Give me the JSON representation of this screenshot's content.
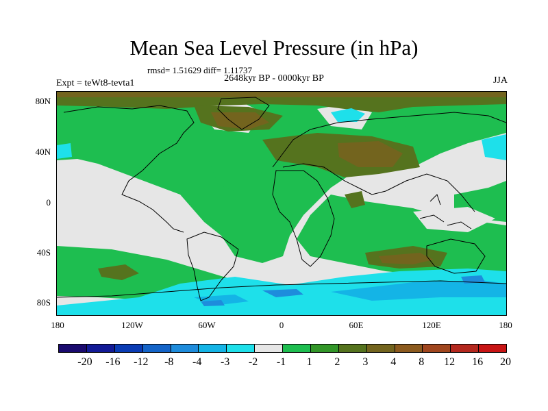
{
  "title": "Mean Sea Level Pressure (in hPa)",
  "stats": "rmsd= 1.51629  diff= 1.11737",
  "period": "2648kyr BP - 0000kyr BP",
  "experiment": "Expt = teWt8-tevta1",
  "season": "JJA",
  "lat_labels": [
    "80N",
    "40N",
    "0",
    "40S",
    "80S"
  ],
  "lon_labels": [
    "180",
    "120W",
    "60W",
    "0",
    "60E",
    "120E",
    "180"
  ],
  "colorbar": {
    "colors": [
      "#1a0a6e",
      "#121a96",
      "#0a3cb4",
      "#1464c8",
      "#1e8cdc",
      "#14b4e6",
      "#1ee0ea",
      "#e6e6e6",
      "#1ebe50",
      "#329628",
      "#55731e",
      "#73641e",
      "#8c5a1e",
      "#a0461e",
      "#b4281e",
      "#c81414"
    ],
    "labels": [
      "-20",
      "-16",
      "-12",
      "-8",
      "-4",
      "-3",
      "-2",
      "-1",
      "1",
      "2",
      "3",
      "4",
      "8",
      "12",
      "16",
      "20"
    ]
  }
}
